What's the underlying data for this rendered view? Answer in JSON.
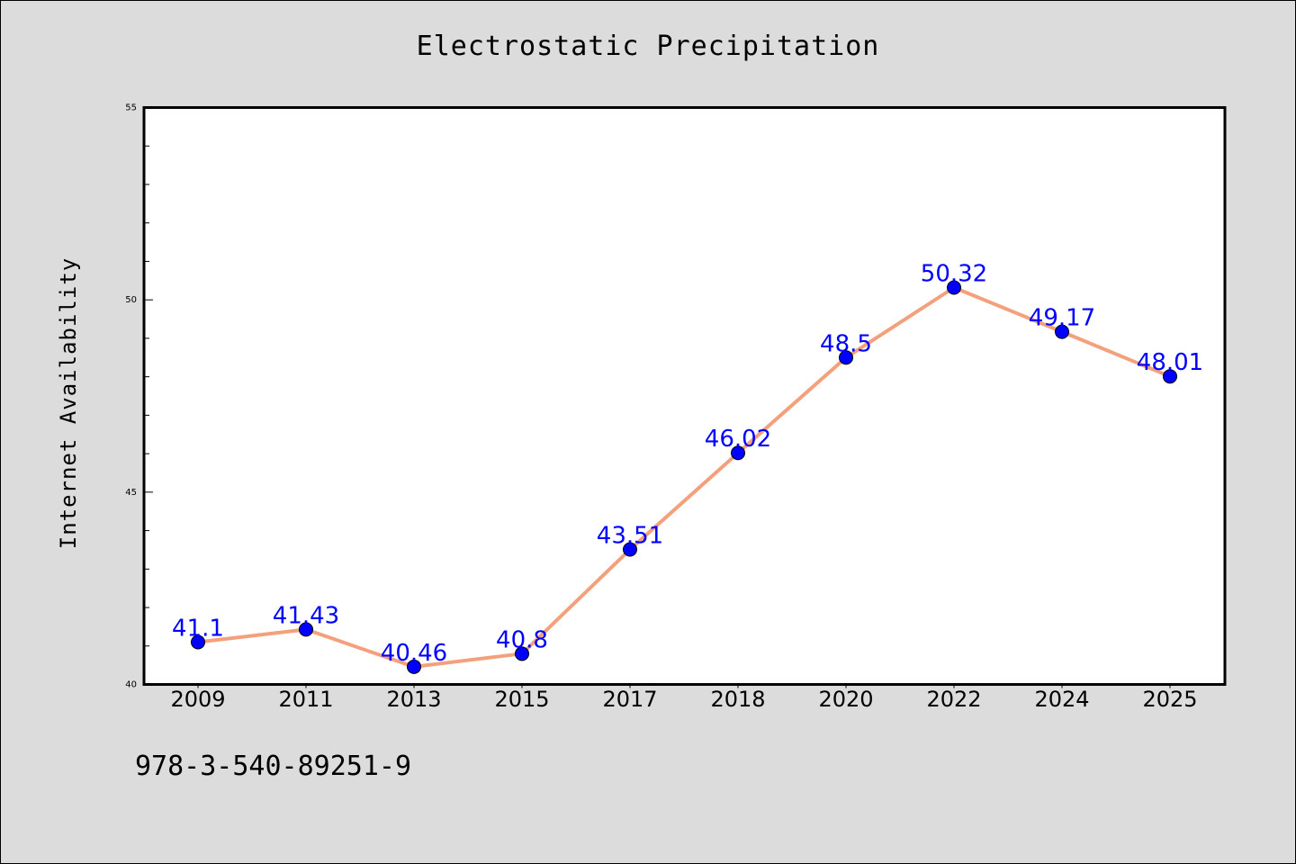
{
  "figure_text": {
    "footer": "978-3-540-89251-9"
  },
  "colors": {
    "background": "#dcdcdc",
    "plot_background": "#ffffff",
    "line": "#f4a07c",
    "marker": "#0000ff",
    "data_label": "#0000ff"
  },
  "chart_data": {
    "type": "line",
    "title": "Electrostatic Precipitation",
    "xlabel": "",
    "ylabel": "Internet Availability",
    "categories": [
      "2009",
      "2011",
      "2013",
      "2015",
      "2017",
      "2018",
      "2020",
      "2022",
      "2024",
      "2025"
    ],
    "series": [
      {
        "values": [
          41.1,
          41.43,
          40.46,
          40.8,
          43.51,
          46.02,
          48.5,
          50.32,
          49.17,
          48.01
        ],
        "labels": [
          "41.1",
          "41.43",
          "40.46",
          "40.8",
          "43.51",
          "46.02",
          "48.5",
          "50.32",
          "49.17",
          "48.01"
        ]
      }
    ],
    "ylim": [
      40,
      55
    ],
    "yticks": [
      40,
      45,
      50,
      55
    ],
    "grid": false,
    "legend": "none"
  }
}
